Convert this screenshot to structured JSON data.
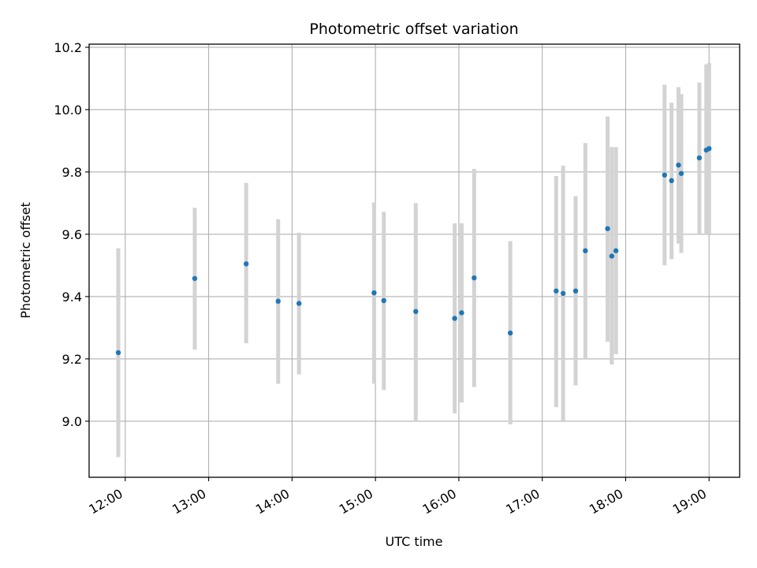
{
  "chart_data": {
    "type": "scatter",
    "title": "Photometric offset variation",
    "xlabel": "UTC time",
    "ylabel": "Photometric offset",
    "x_ticks": [
      "12:00",
      "13:00",
      "14:00",
      "15:00",
      "16:00",
      "17:00",
      "18:00",
      "19:00"
    ],
    "y_ticks": [
      "9.0",
      "9.2",
      "9.4",
      "9.6",
      "9.8",
      "10.0",
      "10.2"
    ],
    "xlim": [
      "11:34",
      "19:22"
    ],
    "ylim": [
      8.82,
      10.21
    ],
    "grid": true,
    "colors": {
      "point": "#1f77b4",
      "errorbar": "#d3d3d3",
      "grid": "#b0b0b0"
    },
    "points": [
      {
        "x": "11:55",
        "y": 9.22,
        "low": 8.885,
        "high": 9.555
      },
      {
        "x": "12:50",
        "y": 9.458,
        "low": 9.23,
        "high": 9.685
      },
      {
        "x": "13:27",
        "y": 9.505,
        "low": 9.25,
        "high": 9.765
      },
      {
        "x": "13:50",
        "y": 9.385,
        "low": 9.12,
        "high": 9.648
      },
      {
        "x": "14:05",
        "y": 9.378,
        "low": 9.15,
        "high": 9.605
      },
      {
        "x": "14:59",
        "y": 9.412,
        "low": 9.12,
        "high": 9.702
      },
      {
        "x": "15:06",
        "y": 9.387,
        "low": 9.1,
        "high": 9.672
      },
      {
        "x": "15:29",
        "y": 9.352,
        "low": 9.0,
        "high": 9.7
      },
      {
        "x": "15:57",
        "y": 9.33,
        "low": 9.025,
        "high": 9.635
      },
      {
        "x": "16:02",
        "y": 9.348,
        "low": 9.06,
        "high": 9.635
      },
      {
        "x": "16:11",
        "y": 9.46,
        "low": 9.11,
        "high": 9.81
      },
      {
        "x": "16:37",
        "y": 9.283,
        "low": 8.99,
        "high": 9.578
      },
      {
        "x": "17:10",
        "y": 9.418,
        "low": 9.045,
        "high": 9.787
      },
      {
        "x": "17:15",
        "y": 9.41,
        "low": 9.0,
        "high": 9.82
      },
      {
        "x": "17:24",
        "y": 9.418,
        "low": 9.115,
        "high": 9.722
      },
      {
        "x": "17:31",
        "y": 9.547,
        "low": 9.2,
        "high": 9.893
      },
      {
        "x": "17:47",
        "y": 9.618,
        "low": 9.255,
        "high": 9.978
      },
      {
        "x": "17:50",
        "y": 9.53,
        "low": 9.182,
        "high": 9.88
      },
      {
        "x": "17:53",
        "y": 9.547,
        "low": 9.215,
        "high": 9.88
      },
      {
        "x": "18:28",
        "y": 9.79,
        "low": 9.5,
        "high": 10.08
      },
      {
        "x": "18:33",
        "y": 9.772,
        "low": 9.52,
        "high": 10.022
      },
      {
        "x": "18:38",
        "y": 9.822,
        "low": 9.57,
        "high": 10.072
      },
      {
        "x": "18:40",
        "y": 9.795,
        "low": 9.54,
        "high": 10.05
      },
      {
        "x": "18:53",
        "y": 9.845,
        "low": 9.6,
        "high": 10.087
      },
      {
        "x": "18:58",
        "y": 9.87,
        "low": 9.6,
        "high": 10.145
      },
      {
        "x": "19:00",
        "y": 9.875,
        "low": 9.6,
        "high": 10.15
      }
    ]
  }
}
